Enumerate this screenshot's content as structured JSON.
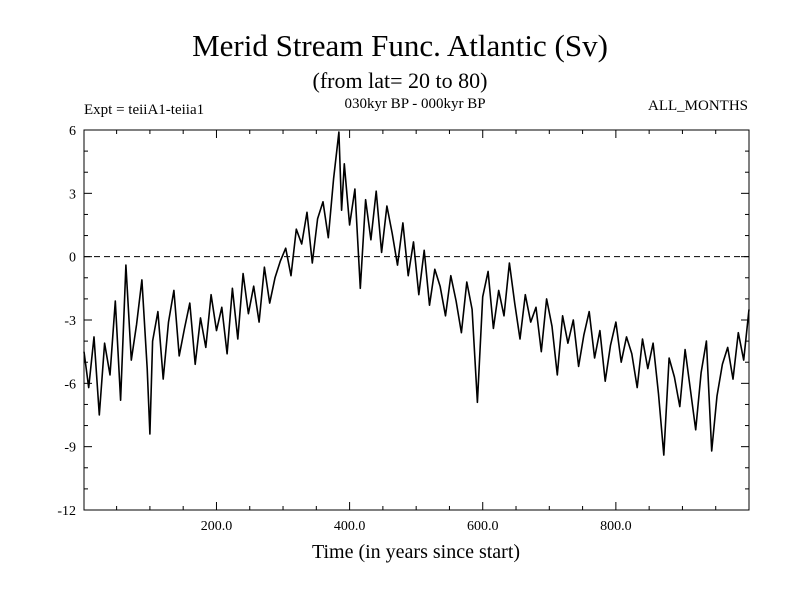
{
  "chart_data": {
    "type": "line",
    "title": "Merid Stream Func. Atlantic (Sv)",
    "subtitle": "(from lat= 20 to 80)",
    "header_left": "Expt = teiiA1-teiia1",
    "header_center": "030kyr BP - 000kyr BP",
    "header_right": "ALL_MONTHS",
    "xlabel": "Time (in years since start)",
    "ylabel": "",
    "xlim": [
      1,
      1000
    ],
    "ylim": [
      -12,
      6
    ],
    "xticks": [
      200,
      400,
      600,
      800
    ],
    "xtick_labels": [
      "200.0",
      "400.0",
      "600.0",
      "800.0"
    ],
    "yticks": [
      6,
      3,
      0,
      -3,
      -6,
      -9,
      -12
    ],
    "ytick_labels": [
      "6",
      "3",
      "0",
      "-3",
      "-6",
      "-9",
      "-12"
    ],
    "reference_line": {
      "y": 0,
      "style": "dashed"
    },
    "grid": false,
    "series": [
      {
        "color": "#000000",
        "x": [
          1,
          8,
          16,
          24,
          32,
          40,
          48,
          56,
          64,
          72,
          80,
          88,
          96,
          100,
          104,
          112,
          120,
          128,
          136,
          144,
          152,
          160,
          168,
          176,
          184,
          192,
          200,
          208,
          216,
          224,
          232,
          240,
          248,
          256,
          264,
          272,
          280,
          288,
          296,
          304,
          312,
          320,
          328,
          336,
          344,
          352,
          360,
          368,
          376,
          384,
          388,
          392,
          400,
          408,
          416,
          424,
          432,
          440,
          448,
          456,
          464,
          472,
          480,
          488,
          496,
          504,
          512,
          520,
          528,
          536,
          544,
          552,
          560,
          568,
          576,
          584,
          592,
          600,
          608,
          616,
          624,
          632,
          640,
          648,
          656,
          664,
          672,
          680,
          688,
          696,
          704,
          712,
          720,
          728,
          736,
          744,
          752,
          760,
          768,
          776,
          784,
          792,
          800,
          808,
          816,
          824,
          832,
          840,
          848,
          856,
          864,
          872,
          880,
          888,
          896,
          904,
          912,
          920,
          928,
          936,
          944,
          952,
          960,
          968,
          976,
          984,
          992,
          1000
        ],
        "values": [
          -4.5,
          -6.2,
          -3.8,
          -7.5,
          -4.1,
          -5.6,
          -2.1,
          -6.8,
          -0.4,
          -4.9,
          -3.2,
          -1.1,
          -5.3,
          -8.4,
          -4.0,
          -2.6,
          -5.8,
          -3.1,
          -1.6,
          -4.7,
          -3.4,
          -2.2,
          -5.1,
          -2.9,
          -4.3,
          -1.8,
          -3.5,
          -2.4,
          -4.6,
          -1.5,
          -3.9,
          -0.8,
          -2.7,
          -1.4,
          -3.1,
          -0.5,
          -2.2,
          -1.0,
          -0.2,
          0.4,
          -0.9,
          1.3,
          0.6,
          2.1,
          -0.3,
          1.8,
          2.6,
          0.9,
          3.7,
          5.9,
          2.2,
          4.4,
          1.5,
          3.2,
          -1.5,
          2.7,
          0.8,
          3.1,
          0.2,
          2.4,
          1.1,
          -0.4,
          1.6,
          -0.9,
          0.7,
          -1.8,
          0.3,
          -2.3,
          -0.6,
          -1.4,
          -2.8,
          -0.9,
          -2.1,
          -3.6,
          -1.2,
          -2.5,
          -6.9,
          -1.9,
          -0.7,
          -3.4,
          -1.6,
          -2.8,
          -0.3,
          -2.2,
          -3.9,
          -1.8,
          -3.1,
          -2.4,
          -4.5,
          -2.0,
          -3.3,
          -5.6,
          -2.8,
          -4.1,
          -3.0,
          -5.2,
          -3.7,
          -2.6,
          -4.8,
          -3.5,
          -5.9,
          -4.2,
          -3.1,
          -5.0,
          -3.8,
          -4.6,
          -6.2,
          -3.9,
          -5.3,
          -4.1,
          -6.5,
          -9.4,
          -4.8,
          -5.7,
          -7.1,
          -4.4,
          -6.3,
          -8.2,
          -5.5,
          -4.0,
          -9.2,
          -6.6,
          -5.1,
          -4.3,
          -5.8,
          -3.6,
          -4.9,
          -2.5
        ]
      }
    ]
  }
}
